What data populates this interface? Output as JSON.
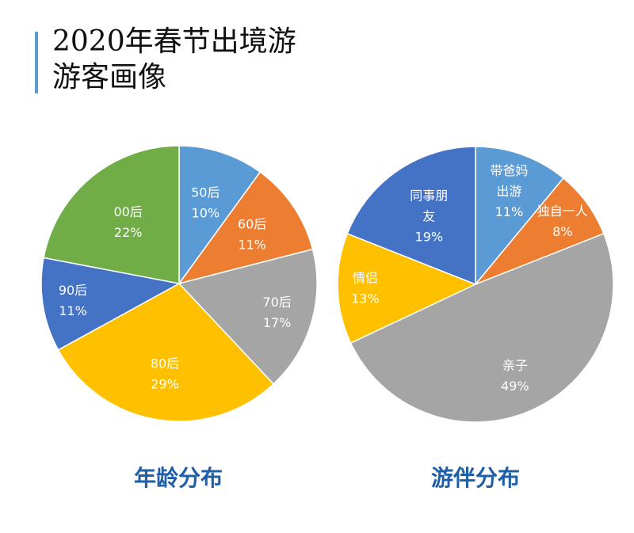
{
  "page": {
    "title_line1": "2020年春节出境游",
    "title_line2": "游客画像"
  },
  "colors": {
    "blue_light": "#5b9bd5",
    "orange": "#ed7d31",
    "gray": "#a5a5a5",
    "yellow": "#ffc000",
    "blue_dark": "#4472c4",
    "green": "#70ad47",
    "caption": "#1f5fa8"
  },
  "chart_data": [
    {
      "type": "pie",
      "title": "年龄分布",
      "slices": [
        {
          "name": "50后",
          "value": 10,
          "label": "10%",
          "color": "#5b9bd5"
        },
        {
          "name": "60后",
          "value": 11,
          "label": "11%",
          "color": "#ed7d31"
        },
        {
          "name": "70后",
          "value": 17,
          "label": "17%",
          "color": "#a5a5a5"
        },
        {
          "name": "80后",
          "value": 29,
          "label": "29%",
          "color": "#ffc000"
        },
        {
          "name": "90后",
          "value": 11,
          "label": "11%",
          "color": "#4472c4"
        },
        {
          "name": "00后",
          "value": 22,
          "label": "22%",
          "color": "#70ad47"
        }
      ]
    },
    {
      "type": "pie",
      "title": "游伴分布",
      "slices": [
        {
          "name": "带爸妈出游",
          "name_lines": [
            "带爸妈",
            "出游"
          ],
          "value": 11,
          "label": "11%",
          "color": "#5b9bd5"
        },
        {
          "name": "独自一人",
          "value": 8,
          "label": "8%",
          "color": "#ed7d31"
        },
        {
          "name": "亲子",
          "value": 49,
          "label": "49%",
          "color": "#a5a5a5"
        },
        {
          "name": "情侣",
          "value": 13,
          "label": "13%",
          "color": "#ffc000"
        },
        {
          "name": "同事朋友",
          "name_lines": [
            "同事朋",
            "友"
          ],
          "value": 19,
          "label": "19%",
          "color": "#4472c4"
        }
      ]
    }
  ]
}
